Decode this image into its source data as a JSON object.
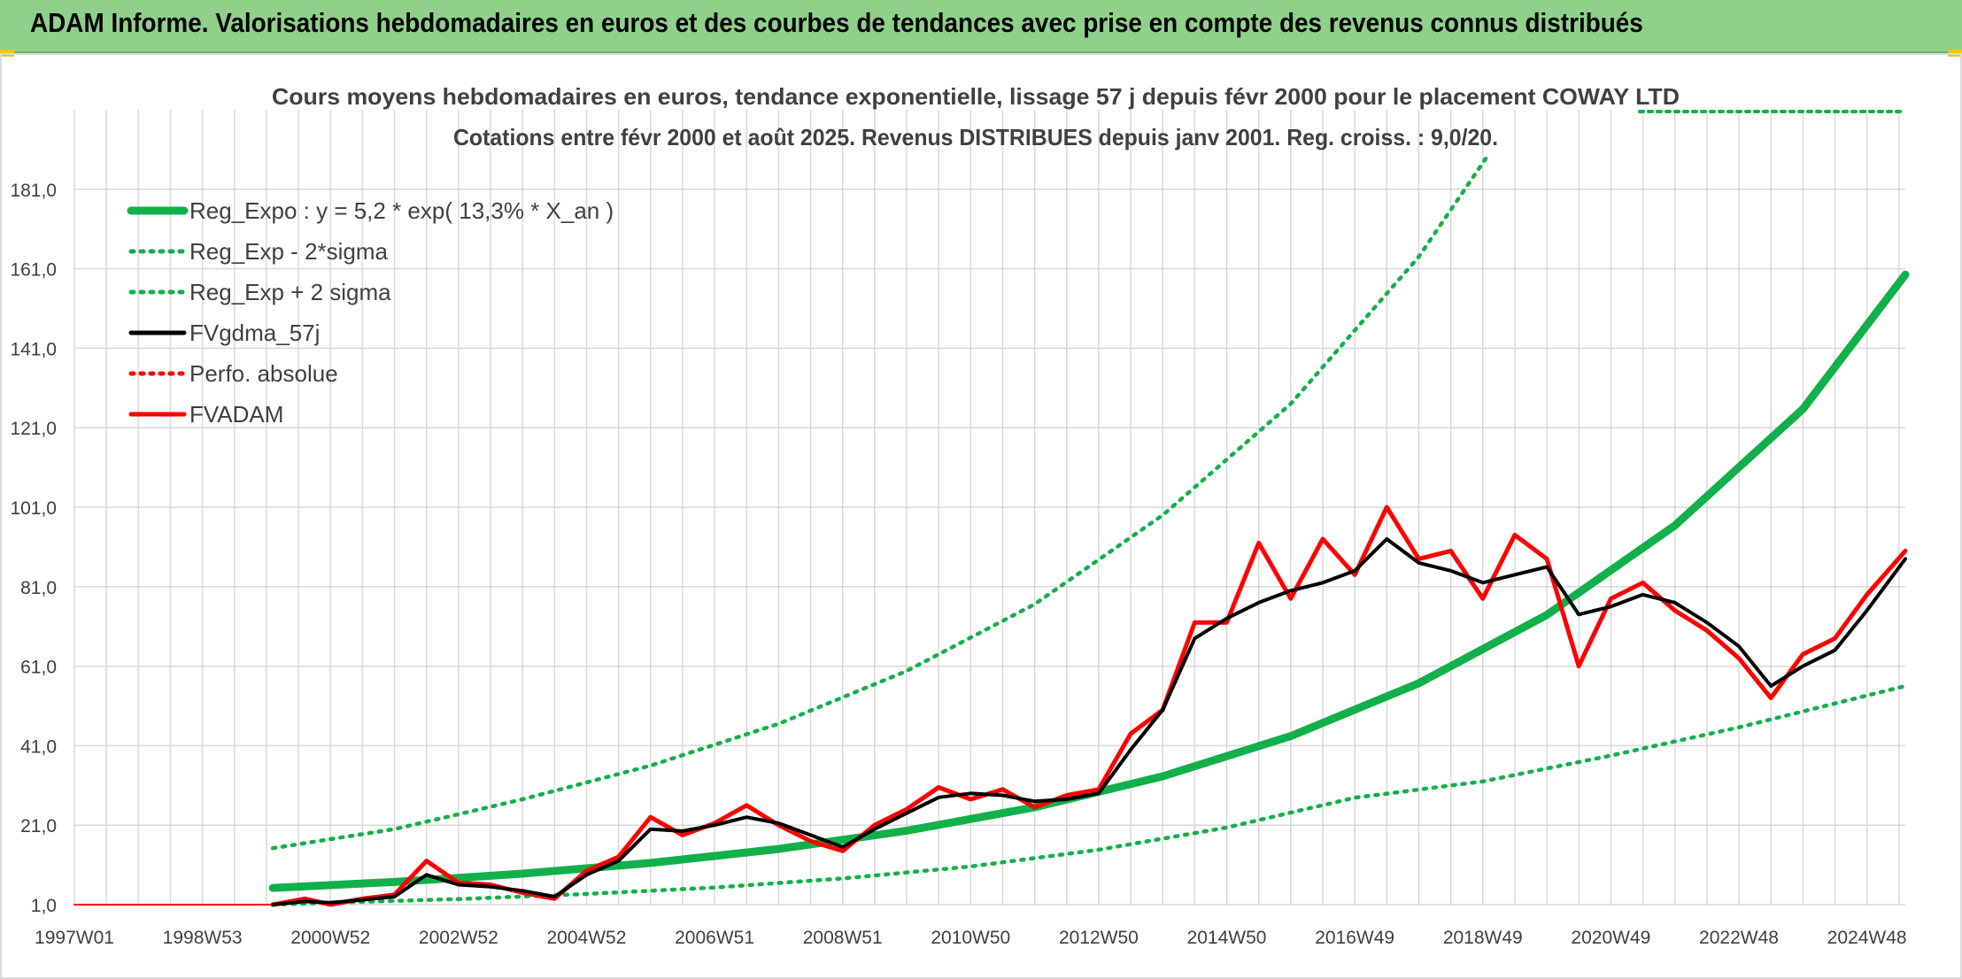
{
  "banner": {
    "title": "ADAM Informe. Valorisations hebdomadaires en euros et des courbes de tendances avec prise en compte des revenus connus distribués"
  },
  "colors": {
    "banner_bg": "#8fd18a",
    "green": "#12b04a",
    "black": "#000000",
    "red": "#ff0000",
    "grid": "#d9d9d9",
    "text": "#404040"
  },
  "chart_data": {
    "type": "line",
    "title": "Cours moyens hebdomadaires en euros, tendance exponentielle, lissage 57 j depuis févr 2000 pour le placement COWAY LTD",
    "subtitle": "Cotations entre févr 2000 et août 2025. Revenus DISTRIBUES depuis janv 2001. Reg. croiss. : 9,0/20.",
    "xlabel": "",
    "ylabel": "",
    "x_range": [
      1997.0,
      2025.6
    ],
    "ylim": [
      1.0,
      201.0
    ],
    "y_ticks": [
      "1,0",
      "21,0",
      "41,0",
      "61,0",
      "81,0",
      "101,0",
      "121,0",
      "141,0",
      "161,0",
      "181,0"
    ],
    "x_ticks": [
      {
        "label": "1997W01",
        "x": 1997.0
      },
      {
        "label": "1998W53",
        "x": 1999.0
      },
      {
        "label": "2000W52",
        "x": 2001.0
      },
      {
        "label": "2002W52",
        "x": 2003.0
      },
      {
        "label": "2004W52",
        "x": 2005.0
      },
      {
        "label": "2006W51",
        "x": 2007.0
      },
      {
        "label": "2008W51",
        "x": 2009.0
      },
      {
        "label": "2010W50",
        "x": 2011.0
      },
      {
        "label": "2012W50",
        "x": 2013.0
      },
      {
        "label": "2014W50",
        "x": 2015.0
      },
      {
        "label": "2016W49",
        "x": 2017.0
      },
      {
        "label": "2018W49",
        "x": 2019.0
      },
      {
        "label": "2020W49",
        "x": 2021.0
      },
      {
        "label": "2022W48",
        "x": 2023.0
      },
      {
        "label": "2024W48",
        "x": 2025.0
      }
    ],
    "grid": true,
    "legend_position": "top-left",
    "series": [
      {
        "name": "Reg_Expo : y = 5,2 * exp( 13,3% *  X_an )",
        "color": "#12b04a",
        "style": "solid",
        "x": [
          2000.1,
          2002.0,
          2004.0,
          2006.0,
          2008.0,
          2010.0,
          2012.0,
          2014.0,
          2016.0,
          2018.0,
          2020.0,
          2022.0,
          2024.0,
          2025.6
        ],
        "y": [
          5.2,
          6.7,
          8.8,
          11.5,
          15.0,
          19.6,
          25.5,
          33.3,
          43.4,
          56.7,
          73.9,
          96.4,
          125.7,
          159.5
        ]
      },
      {
        "name": "Reg_Exp - 2*sigma",
        "color": "#12b04a",
        "style": "dotted",
        "x": [
          2000.1,
          2001.0,
          2003.0,
          2005.0,
          2007.0,
          2009.0,
          2011.0,
          2013.0,
          2015.0,
          2017.0,
          2019.0,
          2021.0,
          2023.0,
          2025.6
        ],
        "y": [
          1.0,
          1.5,
          2.4,
          3.7,
          5.3,
          7.6,
          10.6,
          14.8,
          20.4,
          27.9,
          32.0,
          38.5,
          45.6,
          56.0
        ]
      },
      {
        "name": "Reg_Exp + 2 sigma",
        "color": "#12b04a",
        "style": "dotted",
        "x": [
          2000.1,
          2002.0,
          2004.0,
          2006.0,
          2008.0,
          2010.0,
          2012.0,
          2014.0,
          2016.0,
          2018.0,
          2019.1
        ],
        "y": [
          15.2,
          20.0,
          27.5,
          36.0,
          46.5,
          59.8,
          76.6,
          99.0,
          127.0,
          164.0,
          190.0
        ]
      },
      {
        "name": "FVgdma_57j",
        "color": "#000000",
        "style": "solid",
        "x": [
          2000.1,
          2000.6,
          2001.0,
          2001.5,
          2002.0,
          2002.5,
          2003.0,
          2003.5,
          2004.0,
          2004.5,
          2005.0,
          2005.5,
          2006.0,
          2006.5,
          2007.0,
          2007.5,
          2008.0,
          2008.5,
          2009.0,
          2009.5,
          2010.0,
          2010.5,
          2011.0,
          2011.5,
          2012.0,
          2012.5,
          2013.0,
          2013.5,
          2014.0,
          2014.5,
          2015.0,
          2015.5,
          2016.0,
          2016.5,
          2017.0,
          2017.5,
          2018.0,
          2018.5,
          2019.0,
          2019.5,
          2020.0,
          2020.5,
          2021.0,
          2021.5,
          2022.0,
          2022.5,
          2023.0,
          2023.5,
          2024.0,
          2024.5,
          2025.0,
          2025.6
        ],
        "y": [
          1.0,
          1.8,
          1.5,
          2.2,
          3.0,
          8.5,
          6.0,
          5.5,
          4.5,
          3.0,
          8.5,
          12.0,
          20.0,
          19.5,
          21.0,
          23.0,
          21.5,
          18.5,
          15.5,
          20.0,
          24.0,
          28.0,
          29.0,
          28.5,
          27.0,
          27.5,
          29.0,
          40.0,
          50.0,
          68.0,
          73.0,
          77.0,
          80.0,
          82.0,
          85.0,
          93.0,
          87.0,
          85.0,
          82.0,
          84.0,
          86.0,
          74.0,
          76.0,
          79.0,
          77.0,
          72.0,
          66.0,
          56.0,
          61.0,
          65.0,
          75.0,
          88.0
        ]
      },
      {
        "name": "Perfo. absolue",
        "color": "#ff0000",
        "style": "dotted",
        "x": [
          1997.0,
          2000.1
        ],
        "y": [
          1.0,
          1.0
        ]
      },
      {
        "name": "FVADAM",
        "color": "#ff0000",
        "style": "solid",
        "x": [
          2000.1,
          2000.6,
          2001.0,
          2001.5,
          2002.0,
          2002.5,
          2003.0,
          2003.5,
          2004.0,
          2004.5,
          2005.0,
          2005.5,
          2006.0,
          2006.5,
          2007.0,
          2007.5,
          2008.0,
          2008.5,
          2009.0,
          2009.5,
          2010.0,
          2010.5,
          2011.0,
          2011.5,
          2012.0,
          2012.5,
          2013.0,
          2013.5,
          2014.0,
          2014.5,
          2015.0,
          2015.5,
          2016.0,
          2016.5,
          2017.0,
          2017.5,
          2018.0,
          2018.5,
          2019.0,
          2019.5,
          2020.0,
          2020.5,
          2021.0,
          2021.5,
          2022.0,
          2022.5,
          2023.0,
          2023.5,
          2024.0,
          2024.5,
          2025.0,
          2025.6
        ],
        "y": [
          1.0,
          2.5,
          1.0,
          2.5,
          3.5,
          12.0,
          6.5,
          6.0,
          4.0,
          2.5,
          9.5,
          13.0,
          23.0,
          18.5,
          21.5,
          26.0,
          21.0,
          17.0,
          14.5,
          21.0,
          25.0,
          30.5,
          27.5,
          30.0,
          25.5,
          28.5,
          30.0,
          44.0,
          50.0,
          72.0,
          72.0,
          92.0,
          78.0,
          93.0,
          84.0,
          101.0,
          88.0,
          90.0,
          78.0,
          94.0,
          88.0,
          61.0,
          78.0,
          82.0,
          75.0,
          70.0,
          63.0,
          53.0,
          64.0,
          68.0,
          79.0,
          90.0
        ]
      }
    ]
  }
}
